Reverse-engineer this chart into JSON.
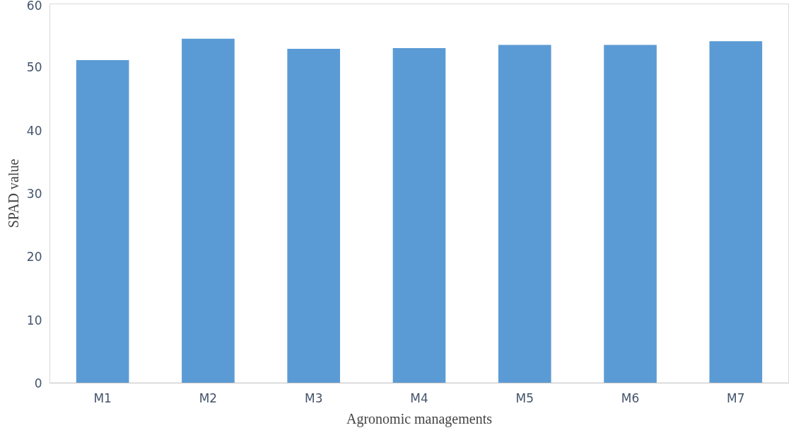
{
  "chart_data": {
    "type": "bar",
    "xlabel": "Agronomic managements",
    "ylabel": "SPAD value",
    "categories": [
      "M1",
      "M2",
      "M3",
      "M4",
      "M5",
      "M6",
      "M7"
    ],
    "values": [
      51.1,
      54.5,
      52.9,
      53.0,
      53.5,
      53.5,
      54.1
    ],
    "color": "#5b9bd5",
    "ylim": [
      0,
      60
    ],
    "yticks": [
      0,
      10,
      20,
      30,
      40,
      50,
      60
    ],
    "grid": false
  }
}
